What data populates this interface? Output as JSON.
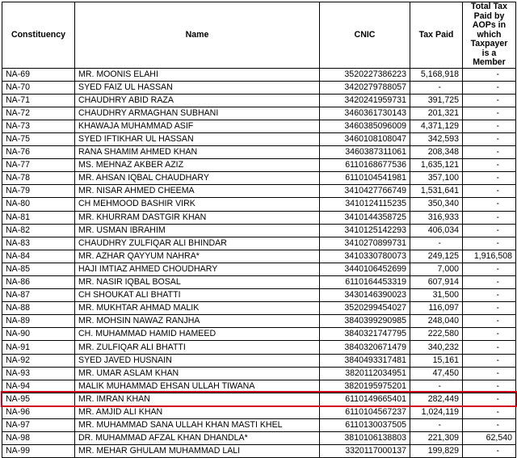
{
  "headers": {
    "constituency": "Constituency",
    "name": "Name",
    "cnic": "CNIC",
    "tax_paid": "Tax Paid",
    "aop": "Total Tax Paid by AOPs in which Taxpayer is a Member"
  },
  "rows": [
    {
      "constituency": "NA-69",
      "name": "MR. MOONIS ELAHI",
      "cnic": "3520227386223",
      "tax_paid": "5,168,918",
      "aop": "-"
    },
    {
      "constituency": "NA-70",
      "name": "SYED FAIZ UL HASSAN",
      "cnic": "3420279788057",
      "tax_paid": "-",
      "aop": "-"
    },
    {
      "constituency": "NA-71",
      "name": "CHAUDHRY ABID RAZA",
      "cnic": "3420241959731",
      "tax_paid": "391,725",
      "aop": "-"
    },
    {
      "constituency": "NA-72",
      "name": "CHAUDHRY ARMAGHAN SUBHANI",
      "cnic": "3460361730143",
      "tax_paid": "201,321",
      "aop": "-"
    },
    {
      "constituency": "NA-73",
      "name": "KHAWAJA MUHAMMAD ASIF",
      "cnic": "3460385096009",
      "tax_paid": "4,371,129",
      "aop": "-"
    },
    {
      "constituency": "NA-75",
      "name": "SYED IFTIKHAR UL HASSAN",
      "cnic": "3460108108047",
      "tax_paid": "342,593",
      "aop": "-"
    },
    {
      "constituency": "NA-76",
      "name": "RANA SHAMIM AHMED KHAN",
      "cnic": "3460387311061",
      "tax_paid": "208,348",
      "aop": "-"
    },
    {
      "constituency": "NA-77",
      "name": "MS. MEHNAZ AKBER AZIZ",
      "cnic": "6110168677536",
      "tax_paid": "1,635,121",
      "aop": "-"
    },
    {
      "constituency": "NA-78",
      "name": "MR. AHSAN IQBAL CHAUDHARY",
      "cnic": "6110104541981",
      "tax_paid": "357,100",
      "aop": "-"
    },
    {
      "constituency": "NA-79",
      "name": "MR. NISAR AHMED CHEEMA",
      "cnic": "3410427766749",
      "tax_paid": "1,531,641",
      "aop": "-"
    },
    {
      "constituency": "NA-80",
      "name": "CH MEHMOOD BASHIR VIRK",
      "cnic": "3410124115235",
      "tax_paid": "350,340",
      "aop": "-"
    },
    {
      "constituency": "NA-81",
      "name": "MR. KHURRAM DASTGIR KHAN",
      "cnic": "3410144358725",
      "tax_paid": "316,933",
      "aop": "-"
    },
    {
      "constituency": "NA-82",
      "name": "MR. USMAN IBRAHIM",
      "cnic": "3410125142293",
      "tax_paid": "406,034",
      "aop": "-"
    },
    {
      "constituency": "NA-83",
      "name": "CHAUDHRY ZULFIQAR ALI BHINDAR",
      "cnic": "3410270899731",
      "tax_paid": "-",
      "aop": "-"
    },
    {
      "constituency": "NA-84",
      "name": "MR. AZHAR QAYYUM NAHRA*",
      "cnic": "3410330780073",
      "tax_paid": "249,125",
      "aop": "1,916,508"
    },
    {
      "constituency": "NA-85",
      "name": "HAJI IMTIAZ AHMED CHOUDHARY",
      "cnic": "3440106452699",
      "tax_paid": "7,000",
      "aop": "-"
    },
    {
      "constituency": "NA-86",
      "name": "MR. NASIR IQBAL BOSAL",
      "cnic": "6110164453319",
      "tax_paid": "607,914",
      "aop": "-"
    },
    {
      "constituency": "NA-87",
      "name": "CH SHOUKAT ALI BHATTI",
      "cnic": "3430146390023",
      "tax_paid": "31,500",
      "aop": "-"
    },
    {
      "constituency": "NA-88",
      "name": "MR. MUKHTAR AHMAD MALIK",
      "cnic": "3520299454027",
      "tax_paid": "116,097",
      "aop": "-"
    },
    {
      "constituency": "NA-89",
      "name": "MR. MOHSIN NAWAZ RANJHA",
      "cnic": "3840399290985",
      "tax_paid": "248,040",
      "aop": "-"
    },
    {
      "constituency": "NA-90",
      "name": "CH. MUHAMMAD HAMID HAMEED",
      "cnic": "3840321747795",
      "tax_paid": "222,580",
      "aop": "-"
    },
    {
      "constituency": "NA-91",
      "name": "MR. ZULFIQAR ALI BHATTI",
      "cnic": "3840320671479",
      "tax_paid": "340,232",
      "aop": "-"
    },
    {
      "constituency": "NA-92",
      "name": "SYED JAVED HUSNAIN",
      "cnic": "3840493317481",
      "tax_paid": "15,161",
      "aop": "-"
    },
    {
      "constituency": "NA-93",
      "name": "MR. UMAR ASLAM KHAN",
      "cnic": "3820112034951",
      "tax_paid": "47,450",
      "aop": "-"
    },
    {
      "constituency": "NA-94",
      "name": "MALIK MUHAMMAD EHSAN ULLAH TIWANA",
      "cnic": "3820195975201",
      "tax_paid": "-",
      "aop": "-"
    },
    {
      "constituency": "NA-95",
      "name": "MR. IMRAN KHAN",
      "cnic": "6110149665401",
      "tax_paid": "282,449",
      "aop": "-"
    },
    {
      "constituency": "NA-96",
      "name": "MR. AMJID ALI KHAN",
      "cnic": "6110104567237",
      "tax_paid": "1,024,119",
      "aop": "-"
    },
    {
      "constituency": "NA-97",
      "name": "MR. MUHAMMAD SANA ULLAH KHAN MASTI KHEL",
      "cnic": "6110130037505",
      "tax_paid": "-",
      "aop": "-"
    },
    {
      "constituency": "NA-98",
      "name": "DR. MUHAMMAD AFZAL KHAN DHANDLA*",
      "cnic": "3810106138803",
      "tax_paid": "221,309",
      "aop": "62,540"
    },
    {
      "constituency": "NA-99",
      "name": "MR. MEHAR GHULAM MUHAMMAD LALI",
      "cnic": "3320117000137",
      "tax_paid": "199,829",
      "aop": "-"
    }
  ],
  "highlight_color": "#d0021b"
}
